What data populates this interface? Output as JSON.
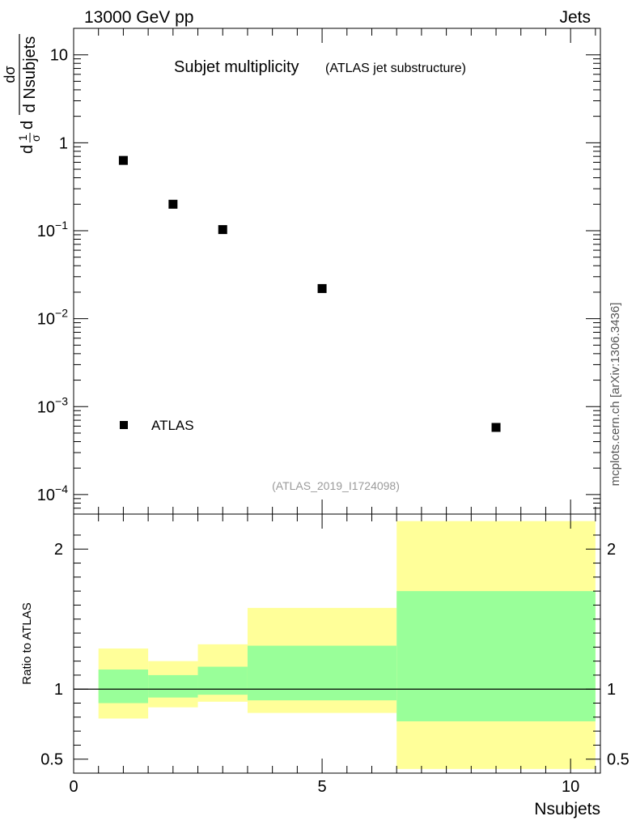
{
  "header": {
    "left": "13000 GeV pp",
    "right": "Jets"
  },
  "chart_data": [
    {
      "type": "scatter",
      "title": "Subjet multiplicity",
      "subtitle": "(ATLAS jet substructure)",
      "ylabel_num": "dσ",
      "ylabel_den": "d Nsubjets",
      "ylabel_prefix_num": "1",
      "ylabel_prefix_den": "σ",
      "ylabel_d": "d",
      "yscale": "log",
      "ylim": [
        6e-05,
        20
      ],
      "xlim": [
        0,
        10.6
      ],
      "yticks": [
        {
          "v": 0.0001,
          "base": "10",
          "exp": "−4"
        },
        {
          "v": 0.001,
          "base": "10",
          "exp": "−3"
        },
        {
          "v": 0.01,
          "base": "10",
          "exp": "−2"
        },
        {
          "v": 0.1,
          "base": "10",
          "exp": "−1"
        },
        {
          "v": 1,
          "base": "1",
          "exp": ""
        },
        {
          "v": 10,
          "base": "10",
          "exp": ""
        }
      ],
      "series": [
        {
          "name": "ATLAS",
          "x": [
            1,
            2,
            3,
            5,
            8.5
          ],
          "y": [
            0.63,
            0.2,
            0.103,
            0.022,
            0.00058
          ]
        }
      ],
      "legend": "bottom-left",
      "analysis_tag": "(ATLAS_2019_I1724098)"
    },
    {
      "type": "area",
      "ylabel": "Ratio to ATLAS",
      "xlabel": "Nsubjets",
      "ylim": [
        0.4,
        2.25
      ],
      "xlim": [
        0,
        10.6
      ],
      "yticks": [
        "0.5",
        "1",
        "2"
      ],
      "ytick_values": [
        0.5,
        1,
        2
      ],
      "xticks": [
        "0",
        "5",
        "10"
      ],
      "xtick_values": [
        0,
        5,
        10
      ],
      "reference": 1,
      "bins": [
        {
          "lo": 0.5,
          "hi": 1.5,
          "green": [
            0.9,
            1.14
          ],
          "yellow": [
            0.79,
            1.29
          ]
        },
        {
          "lo": 1.5,
          "hi": 2.5,
          "green": [
            0.94,
            1.1
          ],
          "yellow": [
            0.87,
            1.2
          ]
        },
        {
          "lo": 2.5,
          "hi": 3.5,
          "green": [
            0.96,
            1.16
          ],
          "yellow": [
            0.91,
            1.32
          ]
        },
        {
          "lo": 3.5,
          "hi": 6.5,
          "green": [
            0.92,
            1.31
          ],
          "yellow": [
            0.83,
            1.58
          ]
        },
        {
          "lo": 6.5,
          "hi": 10.5,
          "green": [
            0.77,
            1.7
          ],
          "yellow": [
            0.43,
            2.2
          ]
        }
      ],
      "colors": {
        "inner": "#99ff99",
        "outer": "#ffff99"
      }
    }
  ],
  "watermark": "mcplots.cern.ch [arXiv:1306.3436]"
}
